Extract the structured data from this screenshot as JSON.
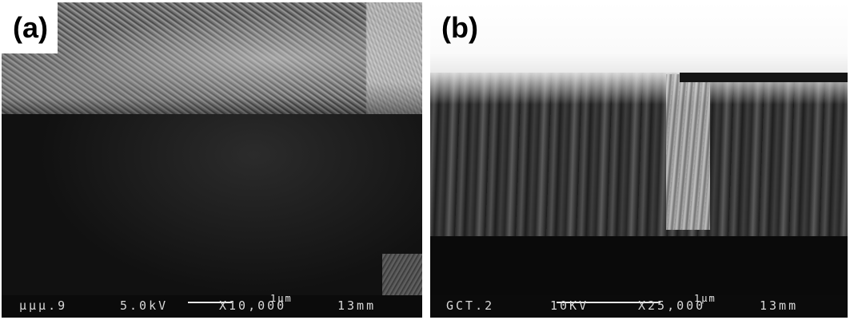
{
  "panels": [
    {
      "label": "(a)",
      "scale_bar": "1µm",
      "databar": {
        "sample": "µµµ.9",
        "voltage": "5.0kV",
        "magnification": "X10,000",
        "working_distance": "13mm"
      }
    },
    {
      "label": "(b)",
      "scale_bar": "1µm",
      "databar": {
        "sample": "GCT.2",
        "voltage": "10KV",
        "magnification": "X25,000",
        "working_distance": "13mm"
      }
    }
  ]
}
